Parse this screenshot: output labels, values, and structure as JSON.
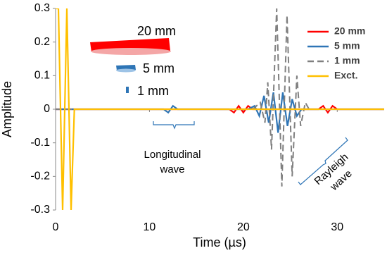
{
  "chart_data": {
    "type": "line",
    "x_label": "Time (µs)",
    "y_label": "Amplitude",
    "xlim": [
      0,
      35
    ],
    "xticks": [
      0,
      10,
      20,
      30
    ],
    "ylim": [
      -0.3,
      0.3
    ],
    "yticks": [
      0.3,
      0.2,
      0.1,
      0,
      -0.1,
      -0.2,
      -0.3
    ],
    "legend": "right",
    "series": [
      {
        "name": "20 mm",
        "color": "#ff0000",
        "dash": false,
        "x": [
          0,
          18.5,
          19,
          19.5,
          20,
          20.5,
          21,
          28,
          28.5,
          29,
          29.5,
          30,
          35
        ],
        "values": [
          0,
          0,
          -0.01,
          0.01,
          -0.01,
          0.01,
          0,
          0,
          0.01,
          -0.01,
          0.01,
          0,
          0
        ]
      },
      {
        "name": "5 mm",
        "color": "#2e75b6",
        "dash": false,
        "x": [
          0,
          11.5,
          12,
          12.5,
          13,
          20.5,
          21.2,
          21.7,
          22.2,
          22.7,
          23.2,
          23.7,
          24.2,
          24.7,
          25.2,
          25.7,
          26.2,
          35
        ],
        "values": [
          0,
          0,
          -0.01,
          0.01,
          0,
          0,
          0.01,
          -0.02,
          0.04,
          -0.04,
          0.05,
          -0.07,
          0.05,
          -0.05,
          0.03,
          -0.02,
          0,
          0
        ]
      },
      {
        "name": "1 mm",
        "color": "#808080",
        "dash": true,
        "x": [
          0,
          21,
          21.8,
          22.3,
          22.6,
          23,
          23.55,
          24.1,
          24.65,
          25.2,
          25.7,
          26.1,
          26.6,
          27,
          35
        ],
        "values": [
          0,
          0,
          0.02,
          -0.04,
          0.08,
          -0.12,
          0.3,
          -0.23,
          0.28,
          -0.2,
          0.1,
          -0.05,
          0.02,
          0,
          0
        ]
      },
      {
        "name": "Exct.",
        "color": "#ffc000",
        "dash": false,
        "x": [
          0,
          0.3,
          0.75,
          1.2,
          1.65,
          2,
          35
        ],
        "values": [
          0.3,
          0.3,
          -0.3,
          0.3,
          -0.3,
          0,
          0
        ]
      }
    ],
    "annotations": [
      {
        "lines": [
          "20 mm"
        ]
      },
      {
        "lines": [
          "5 mm"
        ]
      },
      {
        "lines": [
          "1 mm"
        ]
      },
      {
        "lines": [
          "Longitudinal",
          "wave"
        ]
      },
      {
        "lines": [
          "Rayleigh",
          "wave"
        ]
      }
    ]
  }
}
